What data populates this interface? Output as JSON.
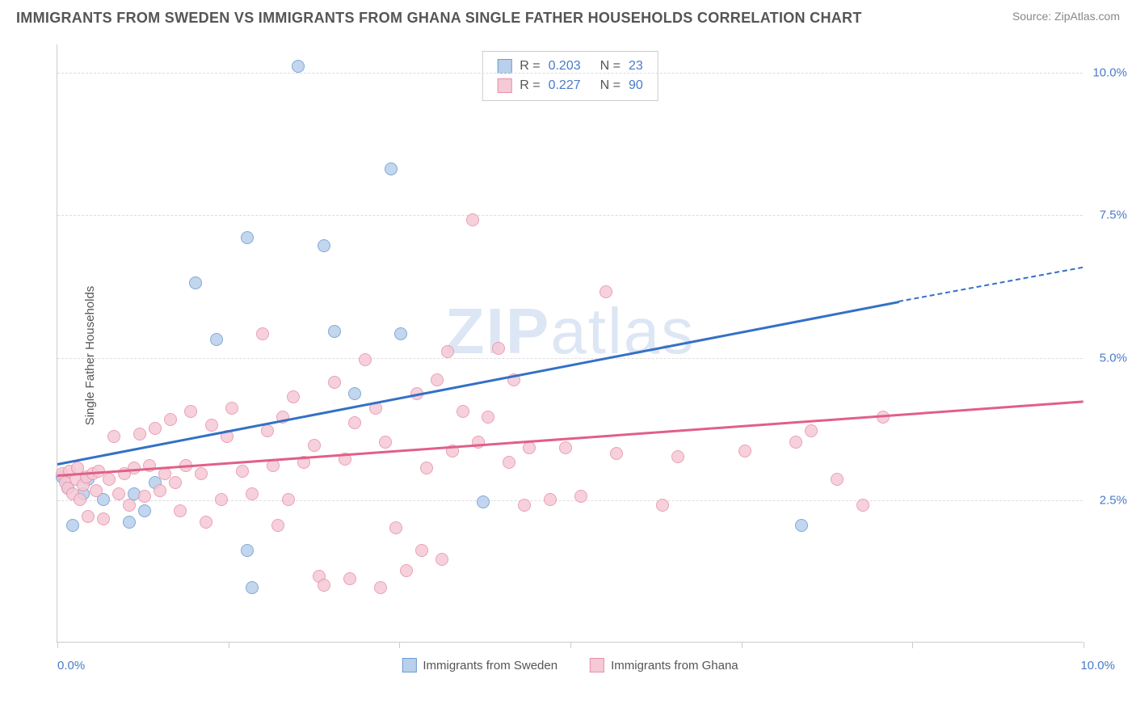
{
  "title": "IMMIGRANTS FROM SWEDEN VS IMMIGRANTS FROM GHANA SINGLE FATHER HOUSEHOLDS CORRELATION CHART",
  "source": "Source: ZipAtlas.com",
  "watermark": "ZIPatlas",
  "chart": {
    "type": "scatter",
    "y_axis_title": "Single Father Households",
    "xlim": [
      0,
      10
    ],
    "ylim": [
      0,
      10.5
    ],
    "x_labels": {
      "min": "0.0%",
      "max": "10.0%"
    },
    "y_ticks": [
      {
        "value": 2.5,
        "label": "2.5%"
      },
      {
        "value": 5.0,
        "label": "5.0%"
      },
      {
        "value": 7.5,
        "label": "7.5%"
      },
      {
        "value": 10.0,
        "label": "10.0%"
      }
    ],
    "x_tick_positions": [
      0,
      1.67,
      3.33,
      5.0,
      6.67,
      8.33,
      10.0
    ],
    "grid_color": "#dddddd",
    "background_color": "#ffffff",
    "axis_color": "#cccccc",
    "series": [
      {
        "name": "Immigrants from Sweden",
        "fill": "#b8d0ec",
        "stroke": "#6c9bd1",
        "line_color": "#3470c6",
        "R": "0.203",
        "N": "23",
        "trend": {
          "x1": 0,
          "y1": 3.15,
          "x2": 8.2,
          "y2": 6.0,
          "dash_x2": 10.0,
          "dash_y2": 6.6
        },
        "points": [
          [
            0.05,
            2.9
          ],
          [
            0.1,
            2.7
          ],
          [
            0.15,
            2.05
          ],
          [
            0.25,
            2.6
          ],
          [
            0.3,
            2.85
          ],
          [
            0.45,
            2.5
          ],
          [
            0.7,
            2.1
          ],
          [
            0.75,
            2.6
          ],
          [
            0.85,
            2.3
          ],
          [
            0.95,
            2.8
          ],
          [
            1.35,
            6.3
          ],
          [
            1.55,
            5.3
          ],
          [
            1.85,
            7.1
          ],
          [
            1.85,
            1.6
          ],
          [
            1.9,
            0.95
          ],
          [
            2.35,
            10.1
          ],
          [
            2.6,
            6.95
          ],
          [
            2.7,
            5.45
          ],
          [
            2.9,
            4.35
          ],
          [
            3.25,
            8.3
          ],
          [
            3.35,
            5.4
          ],
          [
            4.15,
            2.45
          ],
          [
            7.25,
            2.05
          ]
        ]
      },
      {
        "name": "Immigrants from Ghana",
        "fill": "#f5c9d5",
        "stroke": "#e890ab",
        "line_color": "#e06088",
        "R": "0.227",
        "N": "90",
        "trend": {
          "x1": 0,
          "y1": 2.95,
          "x2": 10.0,
          "y2": 4.25
        },
        "points": [
          [
            0.05,
            2.95
          ],
          [
            0.08,
            2.8
          ],
          [
            0.1,
            2.7
          ],
          [
            0.12,
            3.0
          ],
          [
            0.15,
            2.6
          ],
          [
            0.18,
            2.85
          ],
          [
            0.2,
            3.05
          ],
          [
            0.22,
            2.5
          ],
          [
            0.25,
            2.75
          ],
          [
            0.28,
            2.9
          ],
          [
            0.3,
            2.2
          ],
          [
            0.35,
            2.95
          ],
          [
            0.38,
            2.65
          ],
          [
            0.4,
            3.0
          ],
          [
            0.45,
            2.15
          ],
          [
            0.5,
            2.85
          ],
          [
            0.55,
            3.6
          ],
          [
            0.6,
            2.6
          ],
          [
            0.65,
            2.95
          ],
          [
            0.7,
            2.4
          ],
          [
            0.75,
            3.05
          ],
          [
            0.8,
            3.65
          ],
          [
            0.85,
            2.55
          ],
          [
            0.9,
            3.1
          ],
          [
            0.95,
            3.75
          ],
          [
            1.0,
            2.65
          ],
          [
            1.05,
            2.95
          ],
          [
            1.1,
            3.9
          ],
          [
            1.15,
            2.8
          ],
          [
            1.2,
            2.3
          ],
          [
            1.25,
            3.1
          ],
          [
            1.3,
            4.05
          ],
          [
            1.4,
            2.95
          ],
          [
            1.45,
            2.1
          ],
          [
            1.5,
            3.8
          ],
          [
            1.6,
            2.5
          ],
          [
            1.65,
            3.6
          ],
          [
            1.7,
            4.1
          ],
          [
            1.8,
            3.0
          ],
          [
            1.9,
            2.6
          ],
          [
            2.0,
            5.4
          ],
          [
            2.05,
            3.7
          ],
          [
            2.1,
            3.1
          ],
          [
            2.15,
            2.05
          ],
          [
            2.2,
            3.95
          ],
          [
            2.25,
            2.5
          ],
          [
            2.3,
            4.3
          ],
          [
            2.4,
            3.15
          ],
          [
            2.5,
            3.45
          ],
          [
            2.55,
            1.15
          ],
          [
            2.6,
            1.0
          ],
          [
            2.7,
            4.55
          ],
          [
            2.8,
            3.2
          ],
          [
            2.85,
            1.1
          ],
          [
            2.9,
            3.85
          ],
          [
            3.0,
            4.95
          ],
          [
            3.1,
            4.1
          ],
          [
            3.15,
            0.95
          ],
          [
            3.2,
            3.5
          ],
          [
            3.3,
            2.0
          ],
          [
            3.4,
            1.25
          ],
          [
            3.5,
            4.35
          ],
          [
            3.55,
            1.6
          ],
          [
            3.6,
            3.05
          ],
          [
            3.7,
            4.6
          ],
          [
            3.75,
            1.45
          ],
          [
            3.8,
            5.1
          ],
          [
            3.85,
            3.35
          ],
          [
            3.95,
            4.05
          ],
          [
            4.05,
            7.4
          ],
          [
            4.1,
            3.5
          ],
          [
            4.2,
            3.95
          ],
          [
            4.3,
            5.15
          ],
          [
            4.4,
            3.15
          ],
          [
            4.45,
            4.6
          ],
          [
            4.55,
            2.4
          ],
          [
            4.6,
            3.4
          ],
          [
            4.8,
            2.5
          ],
          [
            4.95,
            3.4
          ],
          [
            5.1,
            2.55
          ],
          [
            5.35,
            6.15
          ],
          [
            5.45,
            3.3
          ],
          [
            5.9,
            2.4
          ],
          [
            6.05,
            3.25
          ],
          [
            6.7,
            3.35
          ],
          [
            7.2,
            3.5
          ],
          [
            7.35,
            3.7
          ],
          [
            7.6,
            2.85
          ],
          [
            7.85,
            2.4
          ],
          [
            8.05,
            3.95
          ]
        ]
      }
    ]
  }
}
